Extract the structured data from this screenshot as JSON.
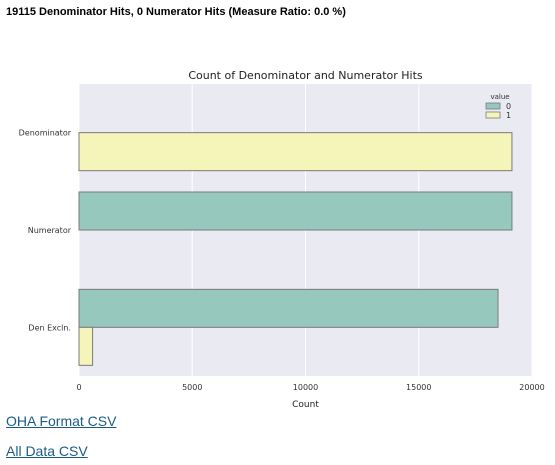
{
  "summary": "19115 Denominator Hits, 0 Numerator Hits (Measure Ratio: 0.0 %)",
  "links": {
    "oha_csv": "OHA Format CSV",
    "all_csv": "All Data CSV"
  },
  "chart_data": {
    "type": "bar",
    "orientation": "horizontal",
    "title": "Count of Denominator and Numerator Hits",
    "xlabel": "Count",
    "ylabel": "",
    "xlim": [
      0,
      20000
    ],
    "xticks": [
      0,
      5000,
      10000,
      15000,
      20000
    ],
    "grid": true,
    "legend_title": "value",
    "legend_position": "top-right",
    "categories": [
      "Denominator",
      "Numerator",
      "Den Excln."
    ],
    "series": [
      {
        "name": "0",
        "color": "#96c8be",
        "values": [
          null,
          19115,
          18500
        ]
      },
      {
        "name": "1",
        "color": "#f5f5b9",
        "values": [
          19115,
          null,
          600
        ]
      }
    ]
  }
}
